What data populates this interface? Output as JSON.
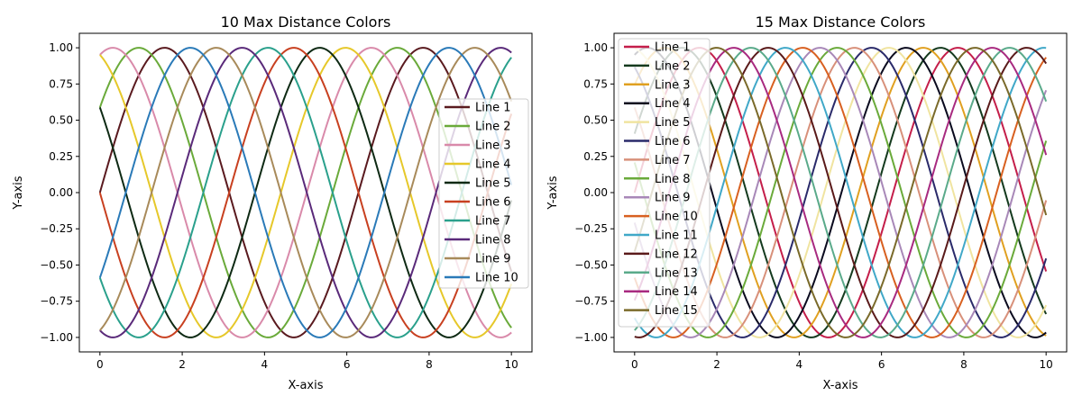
{
  "chart_data": [
    {
      "type": "line",
      "title": "10 Max Distance Colors",
      "xlabel": "X-axis",
      "ylabel": "Y-axis",
      "xlim": [
        -0.5,
        10.5
      ],
      "ylim": [
        -1.1,
        1.1
      ],
      "xticks": [
        "0",
        "2",
        "4",
        "6",
        "8",
        "10"
      ],
      "yticks": [
        "−1.00",
        "−0.75",
        "−0.50",
        "−0.25",
        "0.00",
        "0.25",
        "0.50",
        "0.75",
        "1.00"
      ],
      "grid": false,
      "legend_position": "right",
      "function": "sin(x + phase)",
      "series": [
        {
          "name": "Line 1",
          "color": "#5a1a1f",
          "phase": 0.0
        },
        {
          "name": "Line 2",
          "color": "#6aaa3a",
          "phase": 0.628
        },
        {
          "name": "Line 3",
          "color": "#d98aaa",
          "phase": 1.257
        },
        {
          "name": "Line 4",
          "color": "#e6c82a",
          "phase": 1.885
        },
        {
          "name": "Line 5",
          "color": "#0e2a14",
          "phase": 2.513
        },
        {
          "name": "Line 6",
          "color": "#c84020",
          "phase": 3.142
        },
        {
          "name": "Line 7",
          "color": "#2aa08c",
          "phase": 3.77
        },
        {
          "name": "Line 8",
          "color": "#5a2a7a",
          "phase": 4.398
        },
        {
          "name": "Line 9",
          "color": "#a88a5a",
          "phase": 5.027
        },
        {
          "name": "Line 10",
          "color": "#2a7ab8",
          "phase": 5.655
        }
      ]
    },
    {
      "type": "line",
      "title": "15 Max Distance Colors",
      "xlabel": "X-axis",
      "ylabel": "Y-axis",
      "xlim": [
        -0.5,
        10.5
      ],
      "ylim": [
        -1.1,
        1.1
      ],
      "xticks": [
        "0",
        "2",
        "4",
        "6",
        "8",
        "10"
      ],
      "yticks": [
        "−1.00",
        "−0.75",
        "−0.50",
        "−0.25",
        "0.00",
        "0.25",
        "0.50",
        "0.75",
        "1.00"
      ],
      "grid": false,
      "legend_position": "upper-left",
      "function": "sin(x + phase)",
      "series": [
        {
          "name": "Line 1",
          "color": "#c41e4a",
          "phase": 0.0
        },
        {
          "name": "Line 2",
          "color": "#143a1e",
          "phase": 0.419
        },
        {
          "name": "Line 3",
          "color": "#e0a020",
          "phase": 0.838
        },
        {
          "name": "Line 4",
          "color": "#0a0a1e",
          "phase": 1.257
        },
        {
          "name": "Line 5",
          "color": "#f0e4a0",
          "phase": 1.676
        },
        {
          "name": "Line 6",
          "color": "#2a2a6a",
          "phase": 2.094
        },
        {
          "name": "Line 7",
          "color": "#d8907a",
          "phase": 2.513
        },
        {
          "name": "Line 8",
          "color": "#6aaa3a",
          "phase": 2.932
        },
        {
          "name": "Line 9",
          "color": "#a888b8",
          "phase": 3.351
        },
        {
          "name": "Line 10",
          "color": "#d86020",
          "phase": 3.77
        },
        {
          "name": "Line 11",
          "color": "#40a8c8",
          "phase": 4.189
        },
        {
          "name": "Line 12",
          "color": "#5a1a1a",
          "phase": 4.608
        },
        {
          "name": "Line 13",
          "color": "#5aaa8a",
          "phase": 5.027
        },
        {
          "name": "Line 14",
          "color": "#a82a80",
          "phase": 5.445
        },
        {
          "name": "Line 15",
          "color": "#7a6a2a",
          "phase": 5.864
        }
      ]
    }
  ]
}
